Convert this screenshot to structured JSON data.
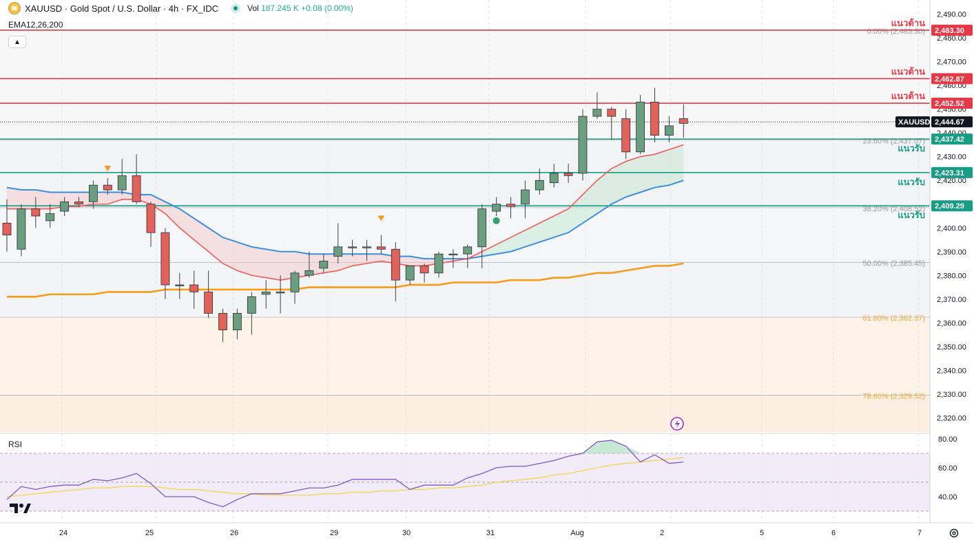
{
  "header": {
    "symbol_title": "XAUUSD · Gold Spot / U.S. Dollar · 4h · FX_IDC",
    "volume_label": "Vol",
    "volume_value": "187.245 K",
    "volume_change": "+0.08 (0.00%)"
  },
  "indicators": {
    "ema_label": "EMA12,26,200",
    "rsi_label": "RSI"
  },
  "colors": {
    "up": "#6b9e7e",
    "down": "#e0625b",
    "resistance": "#e53946",
    "support": "#189c84",
    "ema12": "#ef5b5b",
    "ema26": "#3b8fdc",
    "ema200": "#f59c1a",
    "rsi": "#7e57c2",
    "rsi_ma": "#f2d64b"
  },
  "price_axis": {
    "ticks": [
      "2,490.00",
      "2,480.00",
      "2,470.00",
      "2,460.00",
      "2,450.00",
      "2,440.00",
      "2,430.00",
      "2,420.00",
      "2,410.00",
      "2,400.00",
      "2,390.00",
      "2,380.00",
      "2,370.00",
      "2,360.00",
      "2,350.00",
      "2,340.00",
      "2,330.00",
      "2,320.00"
    ],
    "tick_values": [
      2490,
      2480,
      2470,
      2460,
      2450,
      2440,
      2430,
      2420,
      2410,
      2400,
      2390,
      2380,
      2370,
      2360,
      2350,
      2340,
      2330,
      2320
    ]
  },
  "rsi_axis": {
    "ticks": [
      "80.00",
      "60.00",
      "40.00"
    ],
    "tick_values": [
      80,
      60,
      40
    ]
  },
  "time_axis": {
    "labels": [
      "24",
      "25",
      "26",
      "29",
      "30",
      "31",
      "Aug",
      "2",
      "5",
      "6",
      "7"
    ]
  },
  "levels": [
    {
      "kind": "resistance",
      "label": "แนวต้าน",
      "price_label": "2,483.30",
      "value": 2483.3
    },
    {
      "kind": "resistance",
      "label": "แนวต้าน",
      "price_label": "2,462.87",
      "value": 2462.87
    },
    {
      "kind": "resistance",
      "label": "แนวต้าน",
      "price_label": "2,452.52",
      "value": 2452.52
    },
    {
      "kind": "support",
      "label": "แนวรับ",
      "price_label": "2,437.42",
      "value": 2437.42
    },
    {
      "kind": "support",
      "label": "แนวรับ",
      "price_label": "2,423.31",
      "value": 2423.31
    },
    {
      "kind": "support",
      "label": "แนวรับ",
      "price_label": "2,409.29",
      "value": 2409.29
    }
  ],
  "current_price": {
    "symbol": "XAUUSD",
    "price_label": "2,444.67",
    "value": 2444.67
  },
  "fibonacci": [
    {
      "label": "0.00% (2,483.30)",
      "value": 2483.3
    },
    {
      "label": "23.60% (2,437.07)",
      "value": 2437.07
    },
    {
      "label": "38.20% (2,408.52)",
      "value": 2408.52
    },
    {
      "label": "50.00% (2,385.45)",
      "value": 2385.45
    },
    {
      "label": "61.80% (2,362.37)",
      "value": 2362.37
    },
    {
      "label": "78.60% (2,329.52)",
      "value": 2329.52
    }
  ],
  "chart_data": {
    "type": "candlestick",
    "title": "XAUUSD · Gold Spot / U.S. Dollar · 4h · FX_IDC",
    "ylim": [
      2314,
      2496
    ],
    "candles": [
      {
        "o": 2402,
        "h": 2412,
        "l": 2390,
        "c": 2397
      },
      {
        "o": 2391,
        "h": 2410,
        "l": 2388,
        "c": 2408
      },
      {
        "o": 2408,
        "h": 2413,
        "l": 2400,
        "c": 2405
      },
      {
        "o": 2403,
        "h": 2410,
        "l": 2400,
        "c": 2406
      },
      {
        "o": 2407,
        "h": 2413,
        "l": 2405,
        "c": 2411
      },
      {
        "o": 2411,
        "h": 2413,
        "l": 2409,
        "c": 2410
      },
      {
        "o": 2411,
        "h": 2420,
        "l": 2408,
        "c": 2418
      },
      {
        "o": 2418,
        "h": 2421,
        "l": 2414,
        "c": 2416
      },
      {
        "o": 2416,
        "h": 2429,
        "l": 2414,
        "c": 2422
      },
      {
        "o": 2422,
        "h": 2431,
        "l": 2410,
        "c": 2411
      },
      {
        "o": 2410,
        "h": 2411,
        "l": 2392,
        "c": 2398
      },
      {
        "o": 2398,
        "h": 2400,
        "l": 2370,
        "c": 2376
      },
      {
        "o": 2376,
        "h": 2381,
        "l": 2370,
        "c": 2376
      },
      {
        "o": 2376,
        "h": 2382,
        "l": 2366,
        "c": 2373
      },
      {
        "o": 2373,
        "h": 2382,
        "l": 2362,
        "c": 2364
      },
      {
        "o": 2364,
        "h": 2366,
        "l": 2352,
        "c": 2357
      },
      {
        "o": 2357,
        "h": 2366,
        "l": 2353,
        "c": 2364
      },
      {
        "o": 2364,
        "h": 2373,
        "l": 2355,
        "c": 2371
      },
      {
        "o": 2372,
        "h": 2378,
        "l": 2366,
        "c": 2373
      },
      {
        "o": 2373,
        "h": 2380,
        "l": 2364,
        "c": 2373
      },
      {
        "o": 2373,
        "h": 2382,
        "l": 2368,
        "c": 2381
      },
      {
        "o": 2380,
        "h": 2390,
        "l": 2379,
        "c": 2382
      },
      {
        "o": 2383,
        "h": 2389,
        "l": 2381,
        "c": 2386
      },
      {
        "o": 2388,
        "h": 2402,
        "l": 2385,
        "c": 2392
      },
      {
        "o": 2392,
        "h": 2395,
        "l": 2388,
        "c": 2392
      },
      {
        "o": 2392,
        "h": 2395,
        "l": 2386,
        "c": 2392
      },
      {
        "o": 2392,
        "h": 2397,
        "l": 2389,
        "c": 2391
      },
      {
        "o": 2391,
        "h": 2394,
        "l": 2369,
        "c": 2378
      },
      {
        "o": 2378,
        "h": 2384,
        "l": 2376,
        "c": 2384
      },
      {
        "o": 2384,
        "h": 2385,
        "l": 2377,
        "c": 2381
      },
      {
        "o": 2381,
        "h": 2390,
        "l": 2379,
        "c": 2389
      },
      {
        "o": 2389,
        "h": 2391,
        "l": 2383,
        "c": 2389
      },
      {
        "o": 2389,
        "h": 2393,
        "l": 2383,
        "c": 2392
      },
      {
        "o": 2392,
        "h": 2410,
        "l": 2383,
        "c": 2408
      },
      {
        "o": 2407,
        "h": 2413,
        "l": 2405,
        "c": 2410
      },
      {
        "o": 2410,
        "h": 2413,
        "l": 2404,
        "c": 2409
      },
      {
        "o": 2410,
        "h": 2420,
        "l": 2404,
        "c": 2416
      },
      {
        "o": 2416,
        "h": 2425,
        "l": 2414,
        "c": 2420
      },
      {
        "o": 2419,
        "h": 2427,
        "l": 2417,
        "c": 2423
      },
      {
        "o": 2423,
        "h": 2427,
        "l": 2419,
        "c": 2422
      },
      {
        "o": 2423,
        "h": 2450,
        "l": 2420,
        "c": 2447
      },
      {
        "o": 2447,
        "h": 2457,
        "l": 2446,
        "c": 2450
      },
      {
        "o": 2450,
        "h": 2451,
        "l": 2437,
        "c": 2447
      },
      {
        "o": 2446,
        "h": 2450,
        "l": 2429,
        "c": 2432
      },
      {
        "o": 2432,
        "h": 2456,
        "l": 2431,
        "c": 2453
      },
      {
        "o": 2453,
        "h": 2459,
        "l": 2436,
        "c": 2439
      },
      {
        "o": 2439,
        "h": 2447,
        "l": 2436,
        "c": 2443
      },
      {
        "o": 2446,
        "h": 2452,
        "l": 2438,
        "c": 2444
      }
    ],
    "ema12": [
      2408,
      2408,
      2408,
      2408,
      2409,
      2409,
      2410,
      2410,
      2412,
      2412,
      2410,
      2406,
      2400,
      2395,
      2390,
      2385,
      2382,
      2380,
      2379,
      2378,
      2379,
      2380,
      2381,
      2382,
      2384,
      2385,
      2386,
      2385,
      2384,
      2384,
      2385,
      2386,
      2387,
      2390,
      2393,
      2396,
      2399,
      2402,
      2405,
      2408,
      2414,
      2420,
      2425,
      2428,
      2430,
      2431,
      2433,
      2435
    ],
    "ema26": [
      2417,
      2416,
      2416,
      2415,
      2415,
      2415,
      2415,
      2415,
      2415,
      2414,
      2414,
      2411,
      2408,
      2404,
      2400,
      2396,
      2394,
      2392,
      2391,
      2390,
      2390,
      2389,
      2389,
      2389,
      2389,
      2389,
      2389,
      2388,
      2388,
      2387,
      2387,
      2387,
      2387,
      2388,
      2389,
      2390,
      2392,
      2394,
      2396,
      2398,
      2402,
      2406,
      2410,
      2413,
      2415,
      2417,
      2418,
      2420
    ],
    "ema200": [
      2371,
      2371,
      2371,
      2372,
      2372,
      2372,
      2372,
      2373,
      2373,
      2373,
      2373,
      2374,
      2374,
      2374,
      2374,
      2374,
      2374,
      2374,
      2374,
      2374,
      2374,
      2375,
      2375,
      2375,
      2375,
      2375,
      2375,
      2375,
      2376,
      2376,
      2376,
      2377,
      2377,
      2377,
      2377,
      2378,
      2378,
      2378,
      2379,
      2379,
      2380,
      2381,
      2381,
      2382,
      2383,
      2384,
      2384,
      2385
    ],
    "rsi": [
      38,
      47,
      45,
      47,
      48,
      48,
      52,
      51,
      53,
      56,
      49,
      40,
      40,
      40,
      36,
      33,
      38,
      42,
      42,
      42,
      44,
      46,
      46,
      48,
      52,
      52,
      52,
      52,
      45,
      48,
      48,
      48,
      53,
      56,
      60,
      61,
      61,
      63,
      65,
      68,
      70,
      78,
      79,
      75,
      64,
      69,
      63,
      64
    ],
    "rsi_ma": [
      40,
      41,
      42,
      43,
      44,
      45,
      46,
      46,
      47,
      47,
      47,
      46,
      45,
      45,
      44,
      43,
      42,
      42,
      41,
      41,
      41,
      41,
      42,
      42,
      43,
      43,
      44,
      44,
      45,
      45,
      46,
      46,
      47,
      48,
      50,
      51,
      52,
      53,
      55,
      56,
      58,
      60,
      62,
      63,
      64,
      65,
      66,
      67
    ],
    "markers": [
      {
        "type": "triangle-down",
        "index": 7,
        "value": 2425
      },
      {
        "type": "triangle-down",
        "index": 26,
        "value": 2404
      },
      {
        "type": "circle",
        "index": 34,
        "value": 2403
      }
    ]
  }
}
